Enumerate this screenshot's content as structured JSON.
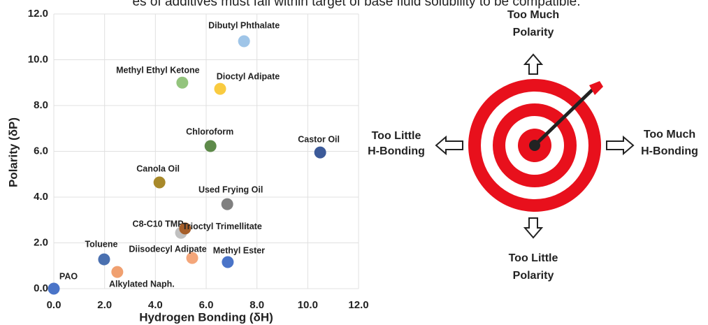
{
  "header": {
    "caption": "es of additives must fall within target of base fluid solubility to be compatible."
  },
  "chart_data": {
    "type": "scatter",
    "xlabel": "Hydrogen Bonding (δH)",
    "ylabel": "Polarity (δP)",
    "xlim": [
      0,
      12
    ],
    "ylim": [
      0,
      12
    ],
    "xticks": [
      {
        "value": 0,
        "label": "0.0"
      },
      {
        "value": 2,
        "label": "2.0"
      },
      {
        "value": 4,
        "label": "4.0"
      },
      {
        "value": 6,
        "label": "6.0"
      },
      {
        "value": 8,
        "label": "8.0"
      },
      {
        "value": 10,
        "label": "10.0"
      },
      {
        "value": 12,
        "label": "12.0"
      }
    ],
    "yticks": [
      {
        "value": 0,
        "label": "0.0"
      },
      {
        "value": 2,
        "label": "2.0"
      },
      {
        "value": 4,
        "label": "4.0"
      },
      {
        "value": 6,
        "label": "6.0"
      },
      {
        "value": 8,
        "label": "8.0"
      },
      {
        "value": 10,
        "label": "10.0"
      },
      {
        "value": 12,
        "label": "12.0"
      }
    ],
    "grid": true,
    "points": [
      {
        "name": "Dibutyl Phthalate",
        "x": 7.49,
        "y": 10.81,
        "color": "#9fc5e8"
      },
      {
        "name": "Methyl Ethyl Ketone",
        "x": 5.06,
        "y": 9.0,
        "color": "#93c47d"
      },
      {
        "name": "Dioctyl Adipate",
        "x": 6.55,
        "y": 8.73,
        "color": "#f9cb40"
      },
      {
        "name": "Chloroform",
        "x": 6.17,
        "y": 6.23,
        "color": "#5e8a4a"
      },
      {
        "name": "Castor Oil",
        "x": 10.49,
        "y": 5.95,
        "color": "#3c5a99"
      },
      {
        "name": "Canola Oil",
        "x": 4.16,
        "y": 4.64,
        "color": "#a8892a"
      },
      {
        "name": "Used Frying Oil",
        "x": 6.83,
        "y": 3.69,
        "color": "#808080"
      },
      {
        "name": "C8-C10 TMP",
        "x": 5.01,
        "y": 2.44,
        "color": "#c0c0c0"
      },
      {
        "name": "Trioctyl Trimellitate",
        "x": 5.17,
        "y": 2.63,
        "color": "#a65f2a"
      },
      {
        "name": "Diisodecyl Adipate",
        "x": 5.45,
        "y": 1.34,
        "color": "#f4a67a"
      },
      {
        "name": "Methyl Ester",
        "x": 6.85,
        "y": 1.16,
        "color": "#4a74c8"
      },
      {
        "name": "Toluene",
        "x": 1.98,
        "y": 1.28,
        "color": "#4a70b0"
      },
      {
        "name": "Alkylated Naph.",
        "x": 2.5,
        "y": 0.73,
        "color": "#f0a070"
      },
      {
        "name": "PAO",
        "x": 0,
        "y": 0,
        "color": "#4a74c8"
      }
    ]
  },
  "diagram": {
    "top": [
      "Too Much",
      "Polarity"
    ],
    "left": [
      "Too Little",
      "H-Bonding"
    ],
    "right": [
      "Too Much",
      "H-Bonding"
    ],
    "bottom": [
      "Too Little",
      "Polarity"
    ]
  }
}
